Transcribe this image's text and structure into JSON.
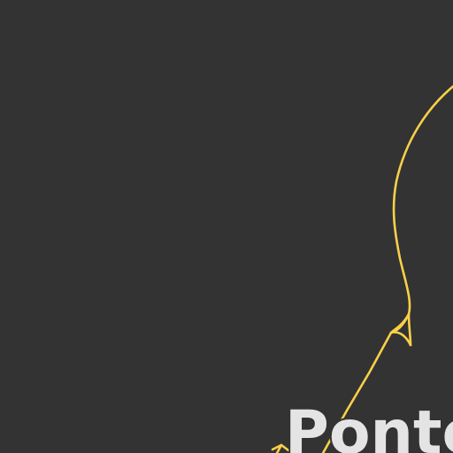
{
  "map": {
    "background_color": "#333333",
    "road_color": "#f9d048",
    "label_color": "#e4e4e4",
    "label_halo_color": "#333333",
    "place_label": "Ponte"
  }
}
